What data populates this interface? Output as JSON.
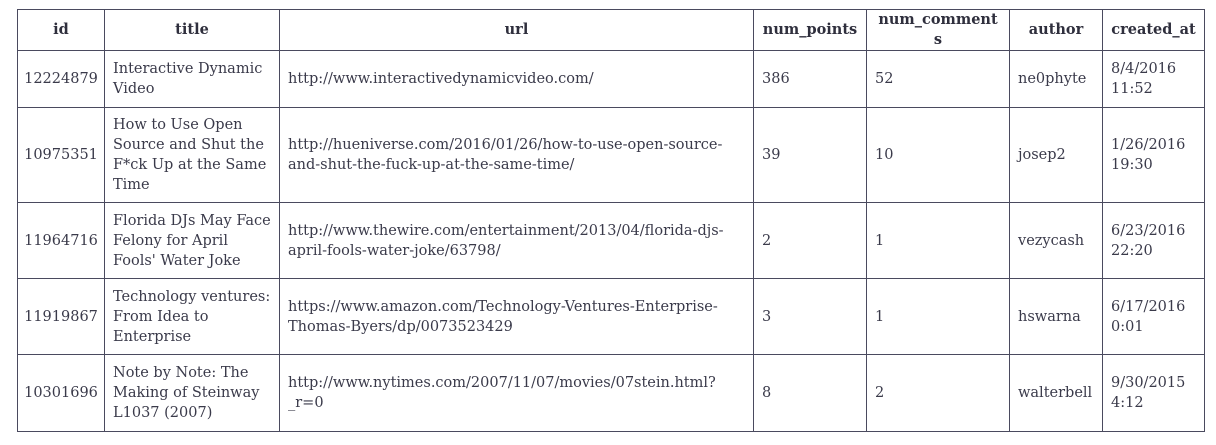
{
  "table": {
    "headers": [
      "id",
      "title",
      "url",
      "num_points",
      "num_comments",
      "author",
      "created_at"
    ],
    "rows": [
      {
        "id": "12224879",
        "title": "Interactive Dynamic Video",
        "url": "http://www.interactivedynamicvideo.com/",
        "num_points": "386",
        "num_comments": "52",
        "author": "ne0phyte",
        "created_at": "8/4/2016 11:52"
      },
      {
        "id": "10975351",
        "title": "How to Use Open Source and Shut the F*ck Up at the Same Time",
        "url": "http://hueniverse.com/2016/01/26/how-to-use-open-source-and-shut-the-fuck-up-at-the-same-time/",
        "num_points": "39",
        "num_comments": "10",
        "author": "josep2",
        "created_at": "1/26/2016 19:30"
      },
      {
        "id": "11964716",
        "title": "Florida DJs May Face Felony for April Fools' Water Joke",
        "url": "http://www.thewire.com/entertainment/2013/04/florida-djs-april-fools-water-joke/63798/",
        "num_points": "2",
        "num_comments": "1",
        "author": "vezycash",
        "created_at": "6/23/2016 22:20"
      },
      {
        "id": "11919867",
        "title": "Technology ventures: From Idea to Enterprise",
        "url": "https://www.amazon.com/Technology-Ventures-Enterprise-Thomas-Byers/dp/0073523429",
        "num_points": "3",
        "num_comments": "1",
        "author": "hswarna",
        "created_at": "6/17/2016 0:01"
      },
      {
        "id": "10301696",
        "title": "Note by Note: The Making of Steinway L1037 (2007)",
        "url": "http://www.nytimes.com/2007/11/07/movies/07stein.html?_r=0",
        "num_points": "8",
        "num_comments": "2",
        "author": "walterbell",
        "created_at": "9/30/2015 4:12"
      }
    ]
  }
}
